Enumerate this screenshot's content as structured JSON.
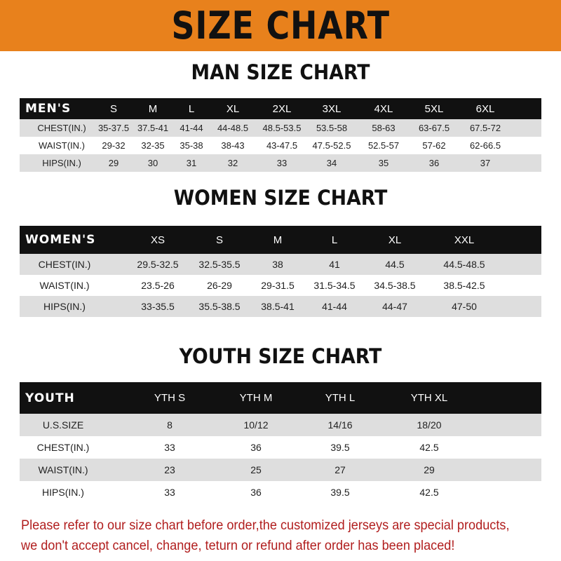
{
  "title": "SIZE CHART",
  "colors": {
    "banner": "#e8811c",
    "header_row": "#111111",
    "alt_row": "#dedede",
    "note": "#b11e1e"
  },
  "sections": [
    {
      "heading": "MAN SIZE CHART",
      "columns": [
        "MEN'S",
        "S",
        "M",
        "L",
        "XL",
        "2XL",
        "3XL",
        "4XL",
        "5XL",
        "6XL"
      ],
      "rows": [
        [
          "CHEST(IN.)",
          "35-37.5",
          "37.5-41",
          "41-44",
          "44-48.5",
          "48.5-53.5",
          "53.5-58",
          "58-63",
          "63-67.5",
          "67.5-72"
        ],
        [
          "WAIST(IN.)",
          "29-32",
          "32-35",
          "35-38",
          "38-43",
          "43-47.5",
          "47.5-52.5",
          "52.5-57",
          "57-62",
          "62-66.5"
        ],
        [
          "HIPS(IN.)",
          "29",
          "30",
          "31",
          "32",
          "33",
          "34",
          "35",
          "36",
          "37"
        ]
      ]
    },
    {
      "heading": "WOMEN SIZE CHART",
      "columns": [
        "WOMEN'S",
        "XS",
        "S",
        "M",
        "L",
        "XL",
        "XXL"
      ],
      "rows": [
        [
          "CHEST(IN.)",
          "29.5-32.5",
          "32.5-35.5",
          "38",
          "41",
          "44.5",
          "44.5-48.5"
        ],
        [
          "WAIST(IN.)",
          "23.5-26",
          "26-29",
          "29-31.5",
          "31.5-34.5",
          "34.5-38.5",
          "38.5-42.5"
        ],
        [
          "HIPS(IN.)",
          "33-35.5",
          "35.5-38.5",
          "38.5-41",
          "41-44",
          "44-47",
          "47-50"
        ]
      ]
    },
    {
      "heading": "YOUTH SIZE CHART",
      "columns": [
        "YOUTH",
        "YTH S",
        "YTH M",
        "YTH L",
        "YTH XL"
      ],
      "rows": [
        [
          "U.S.SIZE",
          "8",
          "10/12",
          "14/16",
          "18/20"
        ],
        [
          "CHEST(IN.)",
          "33",
          "36",
          "39.5",
          "42.5"
        ],
        [
          "WAIST(IN.)",
          "23",
          "25",
          "27",
          "29"
        ],
        [
          "HIPS(IN.)",
          "33",
          "36",
          "39.5",
          "42.5"
        ]
      ]
    }
  ],
  "note": {
    "line1": "Please refer to our size chart before order,the customized jerseys are special products,",
    "line2": "we don't accept cancel, change, teturn or refund after order has been placed!"
  }
}
